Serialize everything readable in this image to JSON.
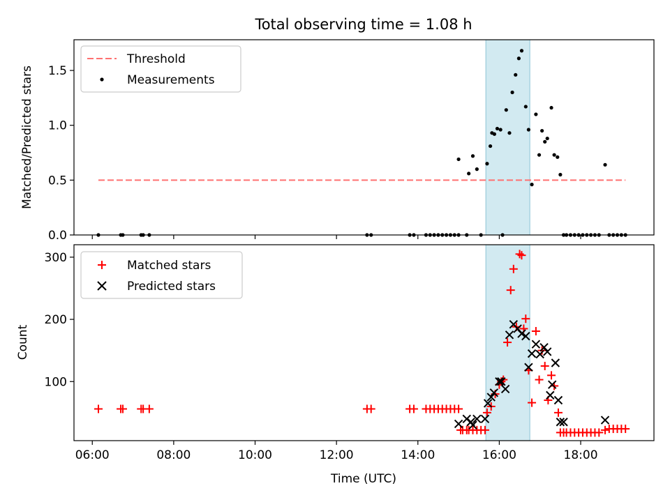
{
  "chart_data": [
    {
      "type": "scatter",
      "title": "Total observing time = 1.08 h",
      "ylabel": "Matched/Predicted stars",
      "xlabel": "",
      "xlim": [
        5.55,
        19.8
      ],
      "ylim": [
        0,
        1.78
      ],
      "yticks": [
        0.0,
        0.5,
        1.0,
        1.5
      ],
      "ytick_labels": [
        "0.0",
        "0.5",
        "1.0",
        "1.5"
      ],
      "highlight_span": {
        "x0": 15.67,
        "x1": 16.75,
        "color": "#add8e6"
      },
      "legend": {
        "location": "upper-left",
        "entries": [
          "Threshold",
          "Measurements"
        ]
      },
      "threshold": {
        "name": "Threshold",
        "value": 0.5,
        "x_range": [
          6.15,
          19.1
        ],
        "color": "#ff7070",
        "style": "dashed"
      },
      "series": [
        {
          "name": "Measurements",
          "color": "#000000",
          "marker": "dot",
          "x": [
            6.15,
            6.7,
            6.75,
            7.2,
            7.25,
            7.4,
            12.75,
            12.85,
            13.8,
            13.9,
            14.2,
            14.3,
            14.4,
            14.5,
            14.6,
            14.7,
            14.8,
            14.9,
            15.0,
            15.0,
            15.2,
            15.25,
            15.35,
            15.45,
            15.55,
            15.7,
            15.78,
            15.82,
            15.88,
            15.95,
            16.03,
            16.08,
            16.17,
            16.25,
            16.32,
            16.4,
            16.48,
            16.55,
            16.65,
            16.72,
            16.8,
            16.9,
            16.98,
            17.05,
            17.12,
            17.18,
            17.28,
            17.35,
            17.43,
            17.5,
            17.58,
            17.65,
            17.75,
            17.85,
            17.95,
            18.05,
            18.15,
            18.25,
            18.35,
            18.45,
            18.6,
            18.7,
            18.8,
            18.9,
            19.0,
            19.1
          ],
          "y": [
            0,
            0,
            0,
            0,
            0,
            0,
            0,
            0,
            0,
            0,
            0,
            0,
            0,
            0,
            0,
            0,
            0,
            0,
            0,
            0.69,
            0,
            0.56,
            0.72,
            0.6,
            0,
            0.65,
            0.81,
            0.93,
            0.92,
            0.97,
            0.96,
            0,
            1.14,
            0.93,
            1.3,
            1.46,
            1.61,
            1.68,
            1.17,
            0.96,
            0.46,
            1.1,
            0.73,
            0.95,
            0.85,
            0.88,
            1.16,
            0.73,
            0.71,
            0.55,
            0,
            0,
            0,
            0,
            0,
            0,
            0,
            0,
            0,
            0,
            0.64,
            0,
            0,
            0,
            0,
            0
          ]
        }
      ]
    },
    {
      "type": "scatter",
      "title": "",
      "ylabel": "Count",
      "xlabel": "Time (UTC)",
      "xlim": [
        5.55,
        19.8
      ],
      "ylim": [
        5,
        320
      ],
      "yticks": [
        100,
        200,
        300
      ],
      "ytick_labels": [
        "100",
        "200",
        "300"
      ],
      "xticks": [
        6,
        8,
        10,
        12,
        14,
        16,
        18
      ],
      "xtick_labels": [
        "06:00",
        "08:00",
        "10:00",
        "12:00",
        "14:00",
        "16:00",
        "18:00"
      ],
      "highlight_span": {
        "x0": 15.67,
        "x1": 16.75,
        "color": "#add8e6"
      },
      "legend": {
        "location": "upper-left",
        "entries": [
          "Matched stars",
          "Predicted stars"
        ]
      },
      "series": [
        {
          "name": "Matched stars",
          "color": "#ff0000",
          "marker": "plus",
          "x": [
            6.15,
            6.7,
            6.75,
            7.2,
            7.25,
            7.4,
            12.75,
            12.85,
            13.8,
            13.9,
            14.2,
            14.3,
            14.4,
            14.5,
            14.6,
            14.7,
            14.8,
            14.9,
            15.0,
            15.05,
            15.1,
            15.2,
            15.25,
            15.35,
            15.45,
            15.55,
            15.65,
            15.7,
            15.8,
            15.9,
            16.0,
            16.05,
            16.1,
            16.2,
            16.28,
            16.35,
            16.42,
            16.5,
            16.55,
            16.6,
            16.65,
            16.72,
            16.8,
            16.9,
            16.98,
            17.05,
            17.12,
            17.2,
            17.28,
            17.35,
            17.45,
            17.5,
            17.58,
            17.65,
            17.75,
            17.85,
            17.95,
            18.05,
            18.15,
            18.25,
            18.35,
            18.45,
            18.6,
            18.7,
            18.8,
            18.9,
            19.0,
            19.1
          ],
          "y": [
            56,
            56,
            56,
            56,
            56,
            56,
            56,
            56,
            56,
            56,
            56,
            56,
            56,
            56,
            56,
            56,
            56,
            56,
            56,
            22,
            22,
            22,
            22,
            22,
            22,
            22,
            22,
            50,
            60,
            80,
            95,
            100,
            103,
            163,
            247,
            281,
            188,
            305,
            303,
            185,
            201,
            118,
            66,
            181,
            103,
            150,
            125,
            70,
            110,
            93,
            50,
            18,
            18,
            18,
            18,
            18,
            18,
            18,
            18,
            18,
            18,
            18,
            22,
            24,
            24,
            24,
            24,
            24
          ]
        },
        {
          "name": "Predicted stars",
          "color": "#000000",
          "marker": "x",
          "x": [
            15.0,
            15.2,
            15.3,
            15.35,
            15.45,
            15.65,
            15.72,
            15.8,
            15.87,
            16.0,
            16.05,
            16.15,
            16.25,
            16.35,
            16.45,
            16.55,
            16.65,
            16.72,
            16.8,
            16.9,
            17.0,
            17.1,
            17.18,
            17.25,
            17.3,
            17.38,
            17.45,
            17.5,
            17.58,
            18.6
          ],
          "y": [
            32,
            40,
            35,
            30,
            40,
            40,
            65,
            75,
            82,
            100,
            100,
            88,
            175,
            192,
            185,
            177,
            173,
            123,
            145,
            160,
            144,
            155,
            148,
            78,
            95,
            130,
            70,
            35,
            35,
            38
          ]
        }
      ]
    }
  ]
}
